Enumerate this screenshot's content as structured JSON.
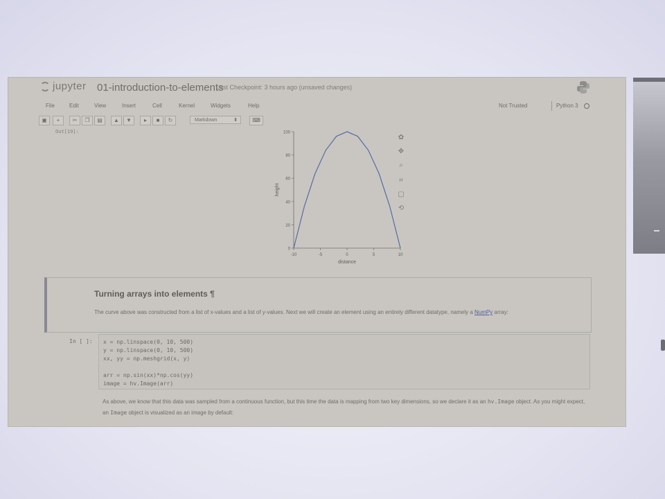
{
  "header": {
    "logo_text": "jupyter",
    "notebook_title": "01-introduction-to-elements",
    "checkpoint": "Last Checkpoint: 3 hours ago (unsaved changes)"
  },
  "menu": {
    "items": [
      "File",
      "Edit",
      "View",
      "Insert",
      "Cell",
      "Kernel",
      "Widgets",
      "Help"
    ],
    "trusted": "Not Trusted",
    "kernel_name": "Python 3"
  },
  "toolbar": {
    "cell_type": "Markdown"
  },
  "output": {
    "prompt": "Out[19]:"
  },
  "chart_data": {
    "type": "line",
    "x": [
      -10,
      -8,
      -6,
      -4,
      -2,
      0,
      2,
      4,
      6,
      8,
      10
    ],
    "series": [
      {
        "values": [
          0,
          36,
          64,
          84,
          96,
          100,
          96,
          84,
          64,
          36,
          0
        ]
      }
    ],
    "xlabel": "distance",
    "ylabel": "height",
    "xticks": [
      "-10",
      "-5",
      "0",
      "5",
      "10"
    ],
    "yticks": [
      "0",
      "20",
      "40",
      "60",
      "80",
      "100"
    ],
    "xlim": [
      -10,
      10
    ],
    "ylim": [
      0,
      100
    ],
    "line_color": "#5f6fa6"
  },
  "markdown": {
    "heading": "Turning arrays into elements",
    "anchor": "¶",
    "para_text": "The curve above was constructed from a list of x-values and a list of y-values. Next we will create an element using an entirely different datatype, namely a",
    "link_text": "NumPy",
    "para_tail": "array:"
  },
  "code": {
    "prompt": "In [ ]:",
    "lines": [
      "x = np.linspace(0, 10, 500)",
      "y = np.linspace(0, 10, 500)",
      "xx, yy = np.meshgrid(x, y)",
      "",
      "arr = np.sin(xx)*np.cos(yy)",
      "image = hv.Image(arr)"
    ]
  },
  "tail": {
    "part1": "As above, we know that this data was sampled from a continuous function, but this time the data is mapping from two key dimensions, so we declare it as an",
    "code1": "hv.Image",
    "part2": "object. As you might expect, an",
    "code2": "Image",
    "part3": "object is visualized as an image by default:"
  }
}
